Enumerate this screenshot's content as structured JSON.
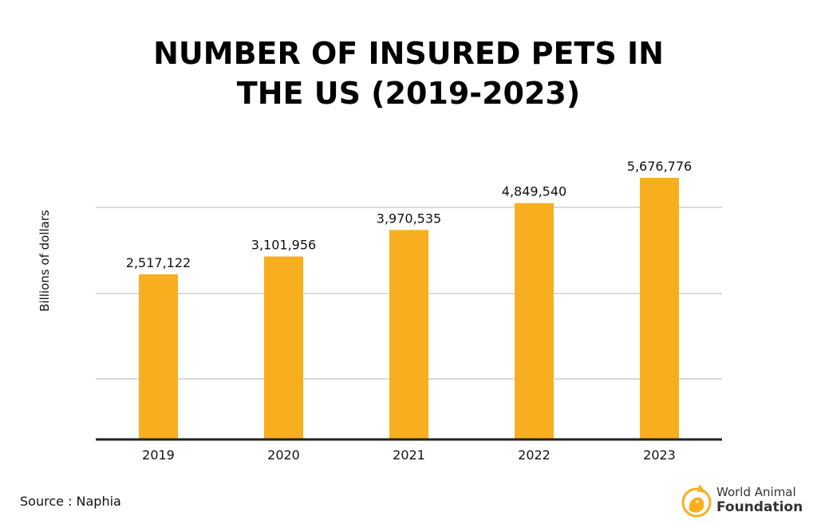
{
  "chart_data": {
    "type": "bar",
    "title_lines": [
      "NUMBER OF INSURED PETS IN",
      "THE US (2019-2023)"
    ],
    "title": "NUMBER OF INSURED PETS IN THE US (2019-2023)",
    "xlabel": "",
    "ylabel": "Billions of dollars",
    "categories": [
      "2019",
      "2020",
      "2021",
      "2022",
      "2023"
    ],
    "values": [
      2517122,
      3101956,
      3970535,
      4849540,
      5676776
    ],
    "data_labels": [
      "2,517,122",
      "3,101,956",
      "3,970,535",
      "4,849,540",
      "5,676,776"
    ],
    "bar_color": "#F7AF20",
    "gridlines": true,
    "legend": "none"
  },
  "footer": {
    "source": "Source : Naphia"
  },
  "logo": {
    "line1": "World Animal",
    "line2": "Foundation",
    "color": "#F7AF20"
  }
}
